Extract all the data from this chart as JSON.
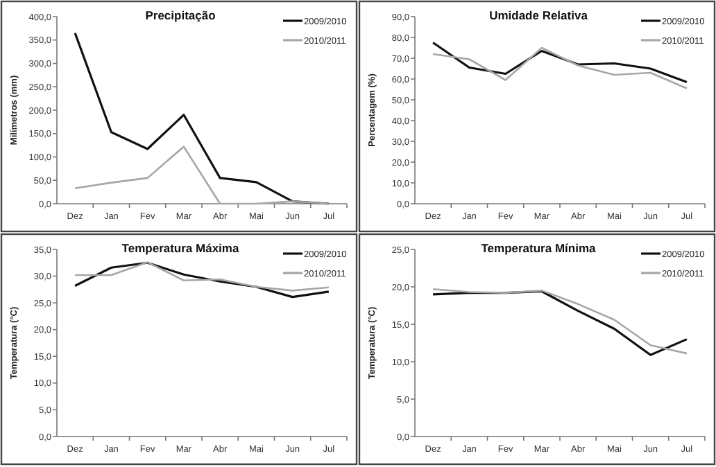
{
  "chart_data": [
    {
      "type": "line",
      "title": "Precipitação",
      "ylabel": "Milímetros (mm)",
      "categories": [
        "Dez",
        "Jan",
        "Fev",
        "Mar",
        "Abr",
        "Mai",
        "Jun",
        "Jul"
      ],
      "ylim": [
        0,
        400
      ],
      "yticks": [
        {
          "value": 0,
          "label": "0,0"
        },
        {
          "value": 50,
          "label": "50,0"
        },
        {
          "value": 100,
          "label": "100,0"
        },
        {
          "value": 150,
          "label": "150,0"
        },
        {
          "value": 200,
          "label": "200,0"
        },
        {
          "value": 250,
          "label": "250,0"
        },
        {
          "value": 300,
          "label": "300,0"
        },
        {
          "value": 350,
          "label": "350,0"
        },
        {
          "value": 400,
          "label": "400,0"
        }
      ],
      "legend": "top right",
      "grid": false,
      "marker": "none",
      "series": [
        {
          "name": "2009/2010",
          "color": "#111111",
          "values": [
            365,
            153,
            117,
            190,
            55,
            46,
            5,
            0
          ]
        },
        {
          "name": "2010/2011",
          "color": "#a6a6a6",
          "values": [
            33,
            45,
            55,
            122,
            0,
            0,
            5,
            0
          ]
        }
      ]
    },
    {
      "type": "line",
      "title": "Umidade Relativa",
      "ylabel": "Percentagem (%)",
      "categories": [
        "Dez",
        "Jan",
        "Fev",
        "Mar",
        "Abr",
        "Mai",
        "Jun",
        "Jul"
      ],
      "ylim": [
        0,
        90
      ],
      "yticks": [
        {
          "value": 0,
          "label": "0,0"
        },
        {
          "value": 10,
          "label": "10,0"
        },
        {
          "value": 20,
          "label": "20,0"
        },
        {
          "value": 30,
          "label": "30,0"
        },
        {
          "value": 40,
          "label": "40,0"
        },
        {
          "value": 50,
          "label": "50,0"
        },
        {
          "value": 60,
          "label": "60,0"
        },
        {
          "value": 70,
          "label": "70,0"
        },
        {
          "value": 80,
          "label": "80,0"
        },
        {
          "value": 90,
          "label": "90,0"
        }
      ],
      "legend": "top right",
      "grid": false,
      "marker": "none",
      "series": [
        {
          "name": "2009/2010",
          "color": "#111111",
          "values": [
            77.5,
            65.5,
            62.5,
            73.5,
            67,
            67.5,
            65,
            58.5
          ]
        },
        {
          "name": "2010/2011",
          "color": "#a6a6a6",
          "values": [
            72,
            69.5,
            59.5,
            75,
            66.5,
            62,
            63,
            55.5
          ]
        }
      ]
    },
    {
      "type": "line",
      "title": "Temperatura Máxima",
      "ylabel": "Temperatura (°C)",
      "categories": [
        "Dez",
        "Jan",
        "Fev",
        "Mar",
        "Abr",
        "Mai",
        "Jun",
        "Jul"
      ],
      "ylim": [
        0,
        35
      ],
      "yticks": [
        {
          "value": 0,
          "label": "0,0"
        },
        {
          "value": 5,
          "label": "5,0"
        },
        {
          "value": 10,
          "label": "10,0"
        },
        {
          "value": 15,
          "label": "15,0"
        },
        {
          "value": 20,
          "label": "20,0"
        },
        {
          "value": 25,
          "label": "25,0"
        },
        {
          "value": 30,
          "label": "30,0"
        },
        {
          "value": 35,
          "label": "35,0"
        }
      ],
      "legend": "top right",
      "grid": false,
      "marker": "none",
      "series": [
        {
          "name": "2009/2010",
          "color": "#111111",
          "values": [
            28.2,
            31.6,
            32.5,
            30.3,
            29,
            28,
            26.1,
            27.1
          ]
        },
        {
          "name": "2010/2011",
          "color": "#a6a6a6",
          "values": [
            30.2,
            30.2,
            32.6,
            29.2,
            29.4,
            28,
            27.3,
            27.9
          ]
        }
      ]
    },
    {
      "type": "line",
      "title": "Temperatura Mínima",
      "ylabel": "Temperatura (°C)",
      "categories": [
        "Dez",
        "Jan",
        "Fev",
        "Mar",
        "Abr",
        "Mai",
        "Jun",
        "Jul"
      ],
      "ylim": [
        0,
        25
      ],
      "yticks": [
        {
          "value": 0,
          "label": "0,0"
        },
        {
          "value": 5,
          "label": "5,0"
        },
        {
          "value": 10,
          "label": "10,0"
        },
        {
          "value": 15,
          "label": "15,0"
        },
        {
          "value": 20,
          "label": "20,0"
        },
        {
          "value": 25,
          "label": "25,0"
        }
      ],
      "legend": "top right",
      "grid": false,
      "marker": "none",
      "series": [
        {
          "name": "2009/2010",
          "color": "#111111",
          "values": [
            19,
            19.2,
            19.2,
            19.4,
            16.8,
            14.4,
            10.9,
            13
          ]
        },
        {
          "name": "2010/2011",
          "color": "#a6a6a6",
          "values": [
            19.7,
            19.3,
            19.2,
            19.5,
            17.7,
            15.6,
            12.2,
            11.1
          ]
        }
      ]
    }
  ]
}
